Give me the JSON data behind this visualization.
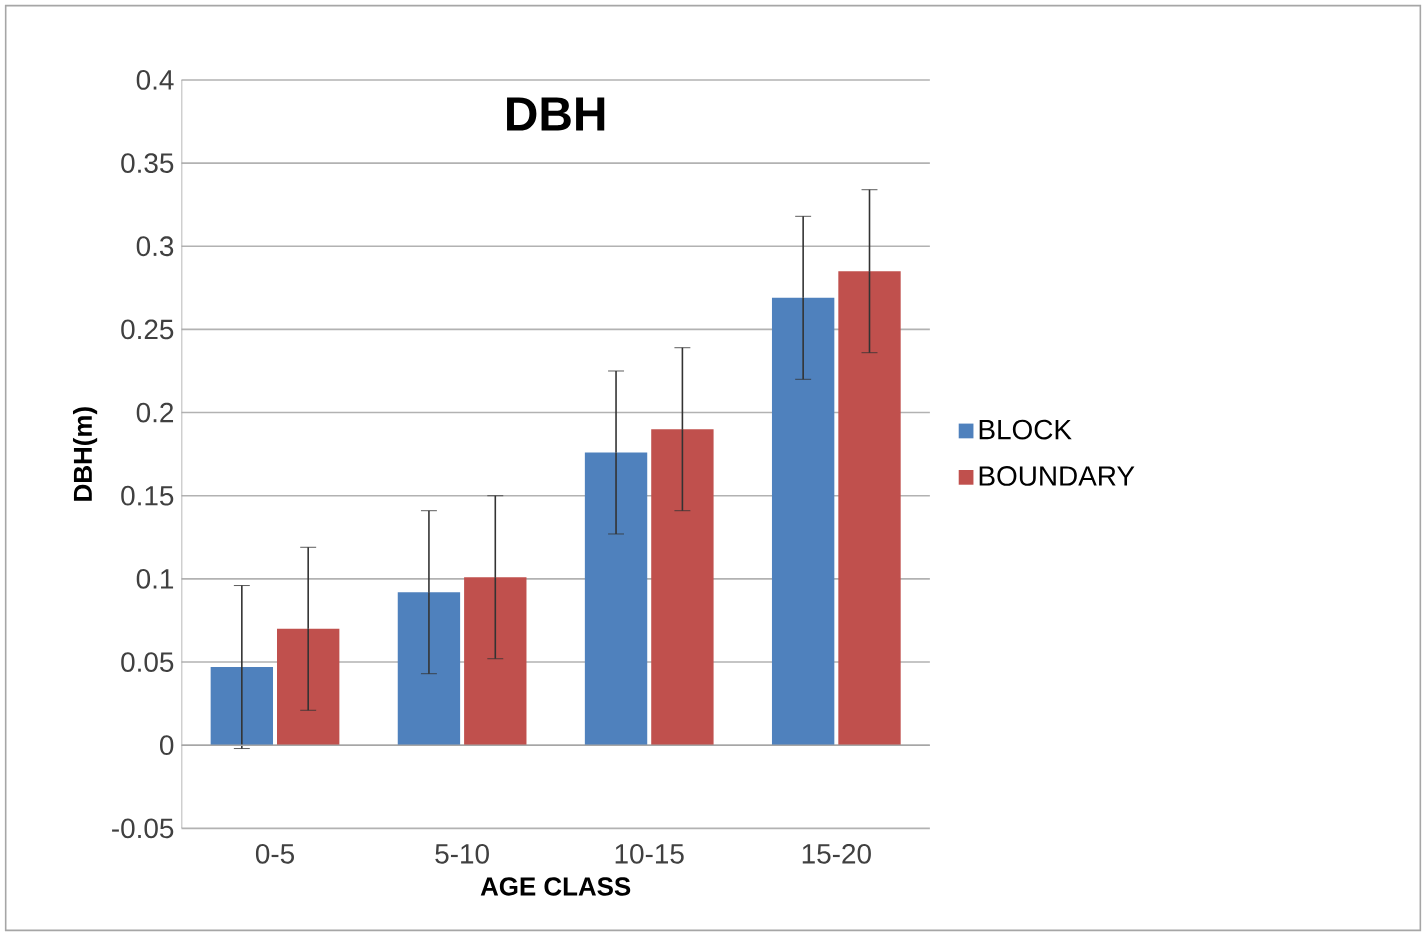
{
  "chart_data": {
    "type": "bar",
    "title": "DBH",
    "xlabel": "AGE CLASS",
    "ylabel": "DBH(m)",
    "categories": [
      "0-5",
      "5-10",
      "10-15",
      "15-20"
    ],
    "series": [
      {
        "name": "BLOCK",
        "color": "#4f81bd",
        "values": [
          0.047,
          0.092,
          0.176,
          0.269
        ],
        "errors": [
          0.049,
          0.049,
          0.049,
          0.049
        ]
      },
      {
        "name": "BOUNDARY",
        "color": "#c0504d",
        "values": [
          0.07,
          0.101,
          0.19,
          0.285
        ],
        "errors": [
          0.049,
          0.049,
          0.049,
          0.049
        ]
      }
    ],
    "ylim": [
      -0.05,
      0.4
    ],
    "yticks": [
      -0.05,
      0,
      0.05,
      0.1,
      0.15,
      0.2,
      0.25,
      0.3,
      0.35,
      0.4
    ],
    "grid": "y",
    "legend": "right"
  }
}
